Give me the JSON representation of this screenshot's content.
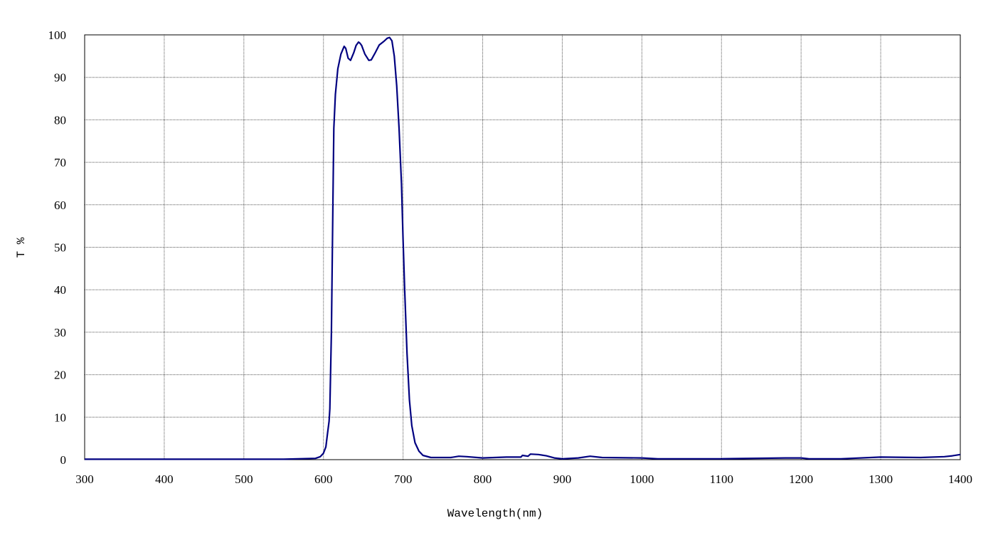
{
  "chart_data": {
    "type": "line",
    "title": "",
    "xlabel": "Wavelength(nm)",
    "ylabel": "T %",
    "xlim": [
      300,
      1400
    ],
    "ylim": [
      0,
      100
    ],
    "xticks": [
      300,
      400,
      500,
      600,
      700,
      800,
      900,
      1000,
      1100,
      1200,
      1300,
      1400
    ],
    "yticks": [
      0,
      10,
      20,
      30,
      40,
      50,
      60,
      70,
      80,
      90,
      100
    ],
    "grid": true,
    "line_color": "#000080",
    "series": [
      {
        "x": [
          300,
          400,
          500,
          550,
          590,
          596,
          600,
          603,
          605,
          607,
          608,
          610,
          612,
          613,
          615,
          618,
          622,
          626,
          628,
          631,
          634,
          638,
          641,
          644,
          646,
          648,
          652,
          657,
          660,
          665,
          670,
          676,
          680,
          683,
          686,
          689,
          692,
          695,
          698,
          700,
          702,
          705,
          708,
          711,
          715,
          720,
          725,
          735,
          760,
          770,
          780,
          800,
          830,
          848,
          850,
          857,
          860,
          870,
          880,
          890,
          900,
          920,
          935,
          950,
          1000,
          1020,
          1100,
          1180,
          1200,
          1210,
          1250,
          1300,
          1350,
          1380,
          1390,
          1400
        ],
        "y": [
          0.1,
          0.1,
          0.1,
          0.1,
          0.3,
          0.7,
          1.5,
          3,
          6,
          9,
          12,
          30,
          63,
          78,
          86,
          92,
          95.5,
          97.3,
          96.8,
          94.5,
          94,
          95.8,
          97.5,
          98.3,
          98,
          97.5,
          95.5,
          94,
          94.1,
          95.8,
          97.6,
          98.5,
          99.2,
          99.4,
          98.6,
          95,
          88,
          78,
          65,
          52,
          40,
          25,
          14,
          8,
          4,
          2,
          1,
          0.5,
          0.5,
          0.8,
          0.7,
          0.4,
          0.6,
          0.6,
          1.0,
          0.8,
          1.3,
          1.2,
          0.9,
          0.4,
          0.2,
          0.4,
          0.8,
          0.5,
          0.4,
          0.2,
          0.2,
          0.4,
          0.4,
          0.2,
          0.2,
          0.6,
          0.5,
          0.7,
          0.9,
          1.2
        ]
      }
    ]
  }
}
